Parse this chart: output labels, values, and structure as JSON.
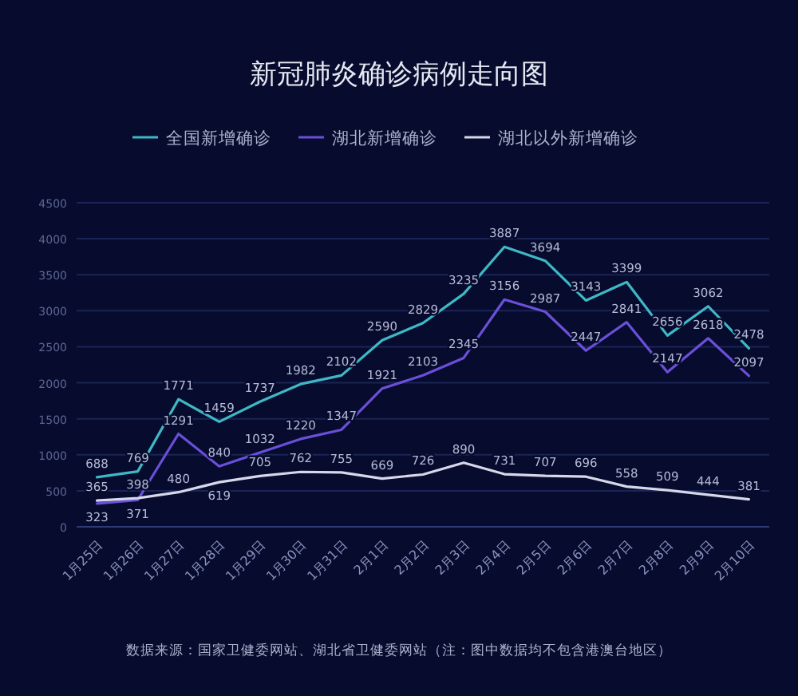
{
  "chart_data": {
    "type": "line",
    "title": "新冠肺炎确诊病例走向图",
    "categories": [
      "1月25日",
      "1月26日",
      "1月27日",
      "1月28日",
      "1月29日",
      "1月30日",
      "1月31日",
      "2月1日",
      "2月2日",
      "2月3日",
      "2月4日",
      "2月5日",
      "2月6日",
      "2月7日",
      "2月8日",
      "2月9日",
      "2月10日"
    ],
    "series": [
      {
        "name": "全国新增确诊",
        "color": "#3fb8c6",
        "values": [
          688,
          769,
          1771,
          1459,
          1737,
          1982,
          2102,
          2590,
          2829,
          3235,
          3887,
          3694,
          3143,
          3399,
          2656,
          3062,
          2478
        ]
      },
      {
        "name": "湖北新增确诊",
        "color": "#6a4fd8",
        "values": [
          323,
          371,
          1291,
          840,
          1032,
          1220,
          1347,
          1921,
          2103,
          2345,
          3156,
          2987,
          2447,
          2841,
          2147,
          2618,
          2097
        ]
      },
      {
        "name": "湖北以外新增确诊",
        "color": "#d6d8ea",
        "values": [
          365,
          398,
          480,
          619,
          705,
          762,
          755,
          669,
          726,
          890,
          731,
          707,
          696,
          558,
          509,
          444,
          381
        ]
      }
    ],
    "ylim": [
      0,
      4500
    ],
    "yticks": [
      0,
      500,
      1000,
      1500,
      2000,
      2500,
      3000,
      3500,
      4000,
      4500
    ],
    "grid": "y",
    "legend": "top",
    "data_labels": true,
    "annotations": [
      "数据来源：国家卫健委网站、湖北省卫健委网站（注：图中数据均不包含港澳台地区）"
    ]
  }
}
